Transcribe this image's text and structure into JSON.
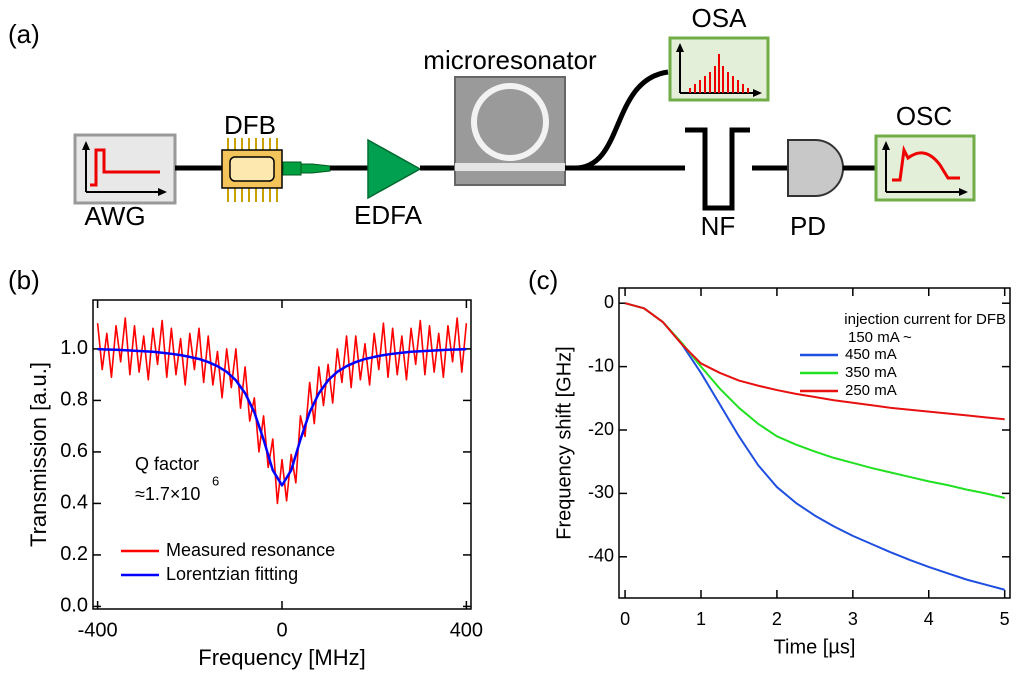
{
  "panel_labels": [
    "(a)",
    "(b)",
    "(c)"
  ],
  "diagram": {
    "nodes": [
      {
        "label": "AWG"
      },
      {
        "label": "DFB"
      },
      {
        "label": "EDFA"
      },
      {
        "label": "microresonator"
      },
      {
        "label": "OSA"
      },
      {
        "label": "NF"
      },
      {
        "label": "PD"
      },
      {
        "label": "OSC"
      }
    ]
  },
  "chart_data": [
    {
      "type": "line",
      "x_label": "Frequency [MHz]",
      "y_label": "Transmission [a.u.]",
      "xlim": [
        -410,
        410
      ],
      "ylim": [
        -0.01,
        1.19
      ],
      "xticks": [
        -400,
        0,
        400
      ],
      "yticks": [
        {
          "value": 0,
          "label": "0.0"
        },
        0.2,
        0.4,
        0.6,
        0.8,
        {
          "value": 1,
          "label": "1.0"
        }
      ],
      "legend": "lower left",
      "legend_text_in_series_color": true,
      "annotation": {
        "q_label": "Q factor",
        "q_value": "≈1.7×10",
        "q_exponent": "6"
      },
      "series": [
        {
          "name": "Measured resonance",
          "color": "#ff0000",
          "width": 1.6,
          "x": [
            -400,
            -390,
            -380,
            -370,
            -360,
            -350,
            -340,
            -330,
            -320,
            -310,
            -300,
            -290,
            -280,
            -270,
            -260,
            -250,
            -240,
            -230,
            -220,
            -210,
            -200,
            -190,
            -180,
            -170,
            -160,
            -150,
            -140,
            -130,
            -120,
            -110,
            -100,
            -90,
            -80,
            -70,
            -60,
            -50,
            -40,
            -30,
            -20,
            -10,
            0,
            10,
            20,
            30,
            40,
            50,
            60,
            70,
            80,
            90,
            100,
            110,
            120,
            130,
            140,
            150,
            160,
            170,
            180,
            190,
            200,
            210,
            220,
            230,
            240,
            250,
            260,
            270,
            280,
            290,
            300,
            310,
            320,
            330,
            340,
            350,
            360,
            370,
            380,
            390,
            400
          ],
          "values": [
            1.1,
            0.92,
            1.06,
            0.89,
            1.09,
            0.95,
            1.12,
            0.9,
            1.09,
            0.91,
            1.05,
            0.88,
            1.08,
            0.94,
            1.11,
            0.89,
            1.08,
            0.9,
            1.04,
            0.86,
            1.06,
            0.92,
            1.08,
            0.87,
            1.05,
            0.86,
            0.99,
            0.81,
            1.0,
            0.85,
            1.0,
            0.77,
            0.93,
            0.72,
            0.81,
            0.6,
            0.74,
            0.54,
            0.65,
            0.4,
            0.57,
            0.41,
            0.59,
            0.48,
            0.74,
            0.66,
            0.87,
            0.71,
            0.93,
            0.78,
            0.94,
            0.79,
            1.0,
            0.87,
            1.05,
            0.85,
            1.05,
            0.88,
            1.02,
            0.86,
            1.06,
            0.92,
            1.1,
            0.89,
            1.08,
            0.9,
            1.05,
            0.88,
            1.08,
            0.94,
            1.11,
            0.9,
            1.09,
            0.91,
            1.06,
            0.89,
            1.09,
            0.95,
            1.12,
            0.91,
            1.1
          ]
        },
        {
          "name": "Lorentzian fitting",
          "color": "#0000ff",
          "width": 2.5,
          "x": [
            -400,
            -380,
            -360,
            -340,
            -320,
            -300,
            -280,
            -260,
            -240,
            -220,
            -200,
            -180,
            -160,
            -140,
            -120,
            -100,
            -80,
            -60,
            -40,
            -20,
            0,
            20,
            40,
            60,
            80,
            100,
            120,
            140,
            160,
            180,
            200,
            220,
            240,
            260,
            280,
            300,
            320,
            340,
            360,
            380,
            400
          ],
          "values": [
            0.999,
            0.998,
            0.997,
            0.995,
            0.993,
            0.991,
            0.989,
            0.985,
            0.981,
            0.976,
            0.969,
            0.961,
            0.949,
            0.933,
            0.911,
            0.878,
            0.828,
            0.754,
            0.648,
            0.529,
            0.47,
            0.529,
            0.648,
            0.754,
            0.828,
            0.878,
            0.911,
            0.933,
            0.949,
            0.961,
            0.969,
            0.976,
            0.981,
            0.985,
            0.989,
            0.991,
            0.993,
            0.995,
            0.997,
            0.998,
            0.999
          ]
        }
      ]
    },
    {
      "type": "line",
      "x_label": "Time [µs]",
      "y_label": "Frequency shift [GHz]",
      "xlim": [
        -0.08,
        5.07
      ],
      "ylim": [
        -46.5,
        2.4
      ],
      "xticks": [
        0,
        1,
        2,
        3,
        4,
        5
      ],
      "yticks": [
        0,
        -10,
        -20,
        -30,
        -40
      ],
      "legend": "upper right",
      "legend_text_in_series_color": false,
      "legend_title": "injection current for DFB",
      "legend_subtitle": "150 mA ~",
      "x": [
        0,
        0.25,
        0.5,
        0.75,
        1,
        1.25,
        1.5,
        1.75,
        2,
        2.25,
        2.5,
        2.75,
        3,
        3.25,
        3.5,
        3.75,
        4,
        4.25,
        4.5,
        4.75,
        5
      ],
      "series": [
        {
          "name": "450 mA",
          "color": "#1f4fe0",
          "width": 2,
          "values": [
            0,
            -0.8,
            -3,
            -6.5,
            -11,
            -16,
            -21,
            -25.5,
            -29,
            -31.5,
            -33.5,
            -35.2,
            -36.7,
            -38,
            -39.3,
            -40.5,
            -41.6,
            -42.6,
            -43.6,
            -44.4,
            -45.2
          ]
        },
        {
          "name": "350 mA",
          "color": "#22e022",
          "width": 2,
          "values": [
            0,
            -0.8,
            -3,
            -6.3,
            -10,
            -13.5,
            -16.5,
            -19,
            -21,
            -22.3,
            -23.4,
            -24.4,
            -25.2,
            -26,
            -26.7,
            -27.4,
            -28.1,
            -28.7,
            -29.4,
            -30,
            -30.7
          ]
        },
        {
          "name": "250 mA",
          "color": "#e81010",
          "width": 2,
          "values": [
            0,
            -0.8,
            -3,
            -6.5,
            -9.5,
            -11,
            -12.2,
            -13,
            -13.7,
            -14.3,
            -14.8,
            -15.3,
            -15.7,
            -16.1,
            -16.5,
            -16.8,
            -17.1,
            -17.4,
            -17.7,
            -18,
            -18.3
          ]
        }
      ]
    }
  ]
}
